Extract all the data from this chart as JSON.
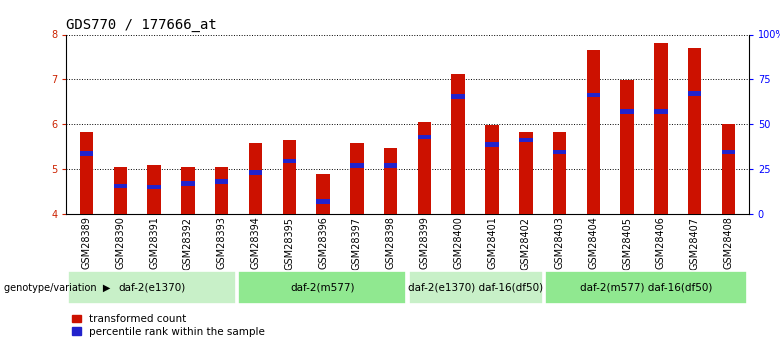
{
  "title": "GDS770 / 177666_at",
  "samples": [
    "GSM28389",
    "GSM28390",
    "GSM28391",
    "GSM28392",
    "GSM28393",
    "GSM28394",
    "GSM28395",
    "GSM28396",
    "GSM28397",
    "GSM28398",
    "GSM28399",
    "GSM28400",
    "GSM28401",
    "GSM28402",
    "GSM28403",
    "GSM28404",
    "GSM28405",
    "GSM28406",
    "GSM28407",
    "GSM28408"
  ],
  "red_values": [
    5.82,
    5.05,
    5.08,
    5.05,
    5.05,
    5.58,
    5.65,
    4.88,
    5.58,
    5.48,
    6.05,
    7.13,
    5.98,
    5.82,
    5.82,
    7.65,
    6.98,
    7.82,
    7.7,
    6.0
  ],
  "blue_values": [
    5.35,
    4.62,
    4.6,
    4.68,
    4.72,
    4.92,
    5.18,
    4.28,
    5.08,
    5.08,
    5.72,
    6.62,
    5.55,
    5.65,
    5.38,
    6.65,
    6.28,
    6.28,
    6.68,
    5.38
  ],
  "groups": [
    {
      "label": "daf-2(e1370)",
      "start": 0,
      "end": 5,
      "color": "#c8f0c8"
    },
    {
      "label": "daf-2(m577)",
      "start": 5,
      "end": 10,
      "color": "#90e890"
    },
    {
      "label": "daf-2(e1370) daf-16(df50)",
      "start": 10,
      "end": 14,
      "color": "#c8f0c8"
    },
    {
      "label": "daf-2(m577) daf-16(df50)",
      "start": 14,
      "end": 20,
      "color": "#90e890"
    }
  ],
  "ylim": [
    4.0,
    8.0
  ],
  "right_ylim_ticks": [
    0,
    25,
    50,
    75,
    100
  ],
  "right_ylim_labels": [
    "0",
    "25",
    "50",
    "75",
    "100%"
  ],
  "bar_color": "#cc1100",
  "blue_color": "#2222cc",
  "bar_width": 0.4,
  "background_color": "#ffffff",
  "title_fontsize": 10,
  "tick_fontsize": 7,
  "label_fontsize": 7.5,
  "gray_bg": "#c8c8c8",
  "yticks": [
    4,
    5,
    6,
    7,
    8
  ]
}
